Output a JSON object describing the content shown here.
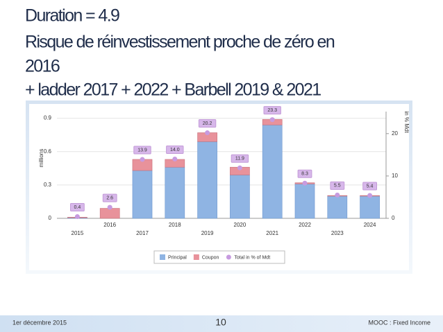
{
  "title_lines": [
    "Duration = 4.9",
    "Risque de réinvestissement proche de zéro en",
    "2016",
    "+ ladder  2017 + 2022 + Barbell 2019 & 2021"
  ],
  "chart_data": {
    "type": "bar",
    "stacked": true,
    "categories": [
      "2015",
      "2016",
      "2017",
      "2018",
      "2019",
      "2020",
      "2021",
      "2022",
      "2023",
      "2024"
    ],
    "ylabel": "millions",
    "y2label": "in % Mdt",
    "ylim": [
      0,
      0.96
    ],
    "yticks": [
      0,
      0.3,
      0.6,
      0.9
    ],
    "y2lim": [
      0,
      25.2
    ],
    "y2ticks": [
      0,
      10,
      20
    ],
    "grid": true,
    "legend": "bottom",
    "series": [
      {
        "name": "Principal",
        "color": "#8fb4e3",
        "values": [
          0.005,
          0,
          0.43,
          0.46,
          0.69,
          0.39,
          0.84,
          0.31,
          0.2,
          0.2
        ]
      },
      {
        "name": "Coupon",
        "color": "#e8929b",
        "values": [
          0.005,
          0.09,
          0.1,
          0.07,
          0.08,
          0.07,
          0.05,
          0.01,
          0.005,
          0.005
        ]
      },
      {
        "name": "Total in % of Mdt",
        "type": "scatter",
        "axis": "y2",
        "color": "#c79be0",
        "values": [
          0.4,
          2.6,
          13.9,
          14,
          20.2,
          11.9,
          23.3,
          8.3,
          5.5,
          5.4
        ],
        "value_labels": [
          "0.4",
          "2.6",
          "13.9",
          "14.0",
          "20.2",
          "11.9",
          "23.3",
          "8.3",
          "5.5",
          "5.4"
        ]
      }
    ]
  },
  "footer": {
    "date": "1er décembre 2015",
    "page": "10",
    "course": "MOOC : Fixed Income"
  }
}
